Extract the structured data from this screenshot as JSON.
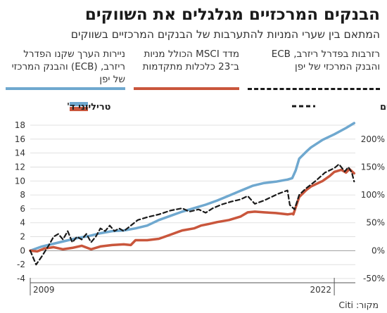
{
  "header": {
    "title": "הבנקים המרכזיים מגלגלים את השווקים",
    "subtitle": "המתאם בין שערי המניות להתערבות של הבנקים המרכזיים בשווקים"
  },
  "legend": [
    {
      "label": "ניירות הערך שקנו הפדרל ריזרב, (ECB) והבנק המרכזי של יפן",
      "color": "#6fa8cf",
      "style": "solid"
    },
    {
      "label": "מדד MSCI הכולל מניות ב־23 כלכלות מתקדמות",
      "color": "#c9563c",
      "style": "solid"
    },
    {
      "label": "רזרבות בפדרל ריזרב, ECB והבנק המרכזי של יפן",
      "color": "#1a1a1a",
      "style": "dashed"
    }
  ],
  "source": "מקור: Citi",
  "chart_data": {
    "type": "line",
    "x_range": [
      2009,
      2022.9
    ],
    "x_tick_labels": [
      {
        "x": 2009,
        "label": "2009"
      },
      {
        "x": 2022,
        "label": "2022"
      }
    ],
    "left_axis": {
      "title": "טריליוני ד'",
      "ylim": [
        -4,
        18
      ],
      "ticks": [
        -4,
        -2,
        0,
        2,
        4,
        6,
        8,
        10,
        12,
        14,
        16,
        18
      ]
    },
    "right_axis": {
      "title": "שינוי באחוזים",
      "ylim": [
        -50,
        225
      ],
      "ticks": [
        -50,
        0,
        50,
        100,
        150,
        200
      ],
      "tick_labels": [
        "-50%",
        "0%",
        "50%",
        "100%",
        "150%",
        "200%"
      ]
    },
    "series": [
      {
        "axis": "left",
        "color": "#6fa8cf",
        "width": 3.5,
        "dash": "",
        "points": [
          [
            2009.0,
            0.0
          ],
          [
            2009.5,
            0.6
          ],
          [
            2010.0,
            1.0
          ],
          [
            2010.5,
            1.4
          ],
          [
            2011.0,
            1.8
          ],
          [
            2011.5,
            2.1
          ],
          [
            2012.0,
            2.5
          ],
          [
            2012.5,
            2.8
          ],
          [
            2013.0,
            2.9
          ],
          [
            2013.5,
            3.2
          ],
          [
            2014.0,
            3.6
          ],
          [
            2014.5,
            4.4
          ],
          [
            2015.0,
            5.0
          ],
          [
            2015.5,
            5.6
          ],
          [
            2016.0,
            6.1
          ],
          [
            2016.5,
            6.6
          ],
          [
            2017.0,
            7.2
          ],
          [
            2017.5,
            7.9
          ],
          [
            2018.0,
            8.6
          ],
          [
            2018.5,
            9.3
          ],
          [
            2019.0,
            9.7
          ],
          [
            2019.5,
            9.9
          ],
          [
            2020.0,
            10.2
          ],
          [
            2020.2,
            10.4
          ],
          [
            2020.35,
            11.5
          ],
          [
            2020.5,
            13.2
          ],
          [
            2020.8,
            14.2
          ],
          [
            2021.0,
            14.8
          ],
          [
            2021.5,
            15.9
          ],
          [
            2022.0,
            16.7
          ],
          [
            2022.5,
            17.6
          ],
          [
            2022.85,
            18.3
          ]
        ]
      },
      {
        "axis": "left",
        "color": "#c9563c",
        "width": 3.5,
        "dash": "",
        "points": [
          [
            2009.0,
            0.0
          ],
          [
            2009.3,
            -0.1
          ],
          [
            2009.6,
            0.3
          ],
          [
            2010.0,
            0.5
          ],
          [
            2010.4,
            0.2
          ],
          [
            2010.8,
            0.4
          ],
          [
            2011.2,
            0.7
          ],
          [
            2011.6,
            0.2
          ],
          [
            2012.0,
            0.6
          ],
          [
            2012.5,
            0.8
          ],
          [
            2013.0,
            0.9
          ],
          [
            2013.3,
            0.8
          ],
          [
            2013.5,
            1.5
          ],
          [
            2014.0,
            1.5
          ],
          [
            2014.5,
            1.7
          ],
          [
            2015.0,
            2.3
          ],
          [
            2015.5,
            2.9
          ],
          [
            2016.0,
            3.2
          ],
          [
            2016.3,
            3.6
          ],
          [
            2016.6,
            3.8
          ],
          [
            2017.0,
            4.1
          ],
          [
            2017.5,
            4.4
          ],
          [
            2018.0,
            4.9
          ],
          [
            2018.3,
            5.5
          ],
          [
            2018.6,
            5.6
          ],
          [
            2019.0,
            5.5
          ],
          [
            2019.5,
            5.4
          ],
          [
            2020.0,
            5.2
          ],
          [
            2020.2,
            5.3
          ],
          [
            2020.25,
            5.2
          ],
          [
            2020.5,
            7.7
          ],
          [
            2020.8,
            8.7
          ],
          [
            2021.0,
            9.2
          ],
          [
            2021.5,
            10.0
          ],
          [
            2021.8,
            10.7
          ],
          [
            2022.0,
            11.3
          ],
          [
            2022.3,
            11.6
          ],
          [
            2022.5,
            11.2
          ],
          [
            2022.65,
            11.7
          ],
          [
            2022.85,
            11.1
          ]
        ]
      },
      {
        "axis": "right",
        "color": "#1a1a1a",
        "width": 2.2,
        "dash": "6,4",
        "points": [
          [
            2009.0,
            0
          ],
          [
            2009.25,
            -25
          ],
          [
            2009.5,
            -10
          ],
          [
            2009.8,
            10
          ],
          [
            2010.0,
            25
          ],
          [
            2010.2,
            30
          ],
          [
            2010.4,
            20
          ],
          [
            2010.6,
            35
          ],
          [
            2010.8,
            15
          ],
          [
            2011.0,
            25
          ],
          [
            2011.2,
            20
          ],
          [
            2011.4,
            30
          ],
          [
            2011.6,
            15
          ],
          [
            2011.8,
            25
          ],
          [
            2012.0,
            40
          ],
          [
            2012.2,
            35
          ],
          [
            2012.4,
            45
          ],
          [
            2012.6,
            35
          ],
          [
            2012.8,
            40
          ],
          [
            2013.0,
            35
          ],
          [
            2013.3,
            45
          ],
          [
            2013.6,
            55
          ],
          [
            2014.0,
            60
          ],
          [
            2014.5,
            65
          ],
          [
            2015.0,
            72
          ],
          [
            2015.5,
            76
          ],
          [
            2015.8,
            70
          ],
          [
            2016.2,
            74
          ],
          [
            2016.5,
            68
          ],
          [
            2016.8,
            76
          ],
          [
            2017.2,
            83
          ],
          [
            2017.6,
            88
          ],
          [
            2018.0,
            92
          ],
          [
            2018.3,
            98
          ],
          [
            2018.6,
            84
          ],
          [
            2019.0,
            90
          ],
          [
            2019.3,
            96
          ],
          [
            2019.6,
            102
          ],
          [
            2020.0,
            108
          ],
          [
            2020.1,
            82
          ],
          [
            2020.3,
            74
          ],
          [
            2020.5,
            100
          ],
          [
            2020.8,
            112
          ],
          [
            2021.2,
            125
          ],
          [
            2021.6,
            140
          ],
          [
            2022.0,
            148
          ],
          [
            2022.2,
            155
          ],
          [
            2022.45,
            142
          ],
          [
            2022.6,
            150
          ],
          [
            2022.75,
            140
          ],
          [
            2022.85,
            124
          ]
        ]
      }
    ]
  }
}
